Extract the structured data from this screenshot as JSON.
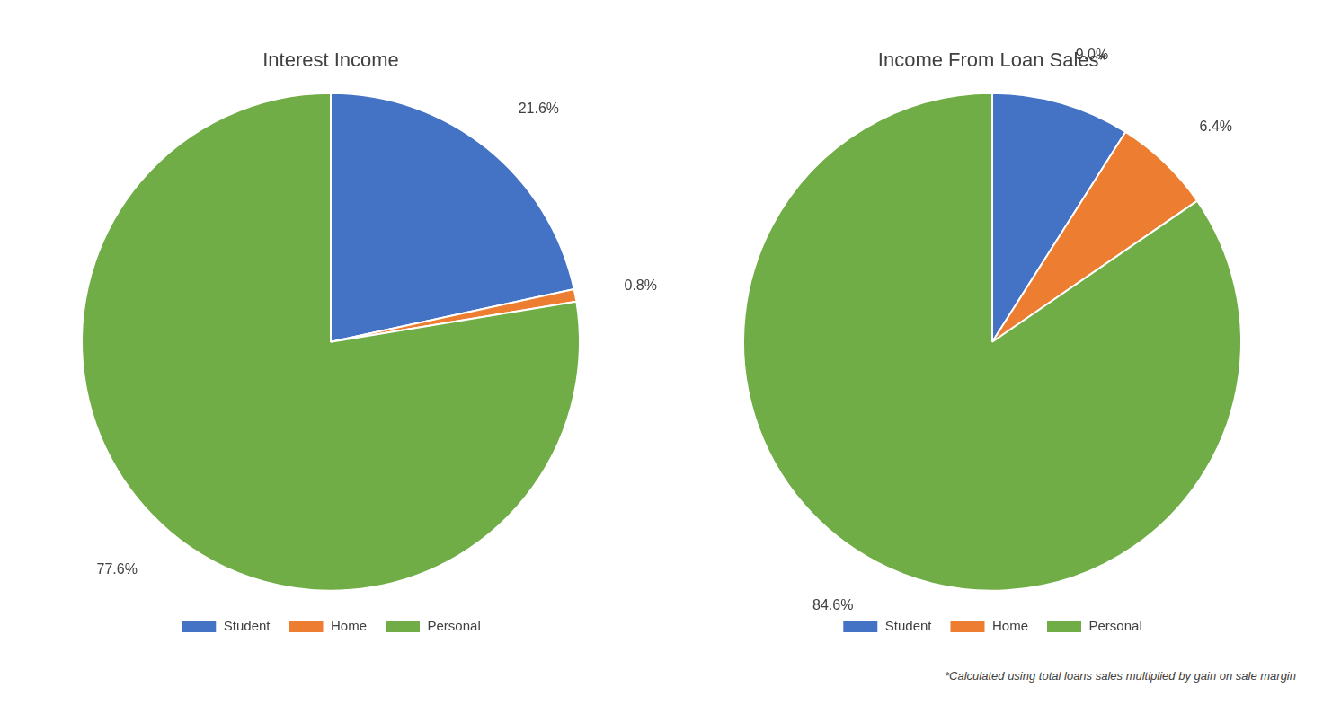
{
  "chart_data": [
    {
      "type": "pie",
      "title": "Interest Income",
      "categories": [
        "Student",
        "Home",
        "Personal"
      ],
      "values": [
        21.6,
        0.8,
        77.6
      ],
      "value_labels": [
        "21.6%",
        "0.8%",
        "77.6%"
      ],
      "colors": [
        "#4472C4",
        "#ED7D31",
        "#70AD47"
      ],
      "data_labels": true,
      "legend": "bottom"
    },
    {
      "type": "pie",
      "title": "Income From Loan Sales*",
      "categories": [
        "Student",
        "Home",
        "Personal"
      ],
      "values": [
        9.0,
        6.4,
        84.6
      ],
      "value_labels": [
        "9.0%",
        "6.4%",
        "84.6%"
      ],
      "colors": [
        "#4472C4",
        "#ED7D31",
        "#70AD47"
      ],
      "data_labels": true,
      "legend": "bottom",
      "annotations": [
        "*Calculated using total loans sales multiplied by gain on sale margin"
      ]
    }
  ]
}
